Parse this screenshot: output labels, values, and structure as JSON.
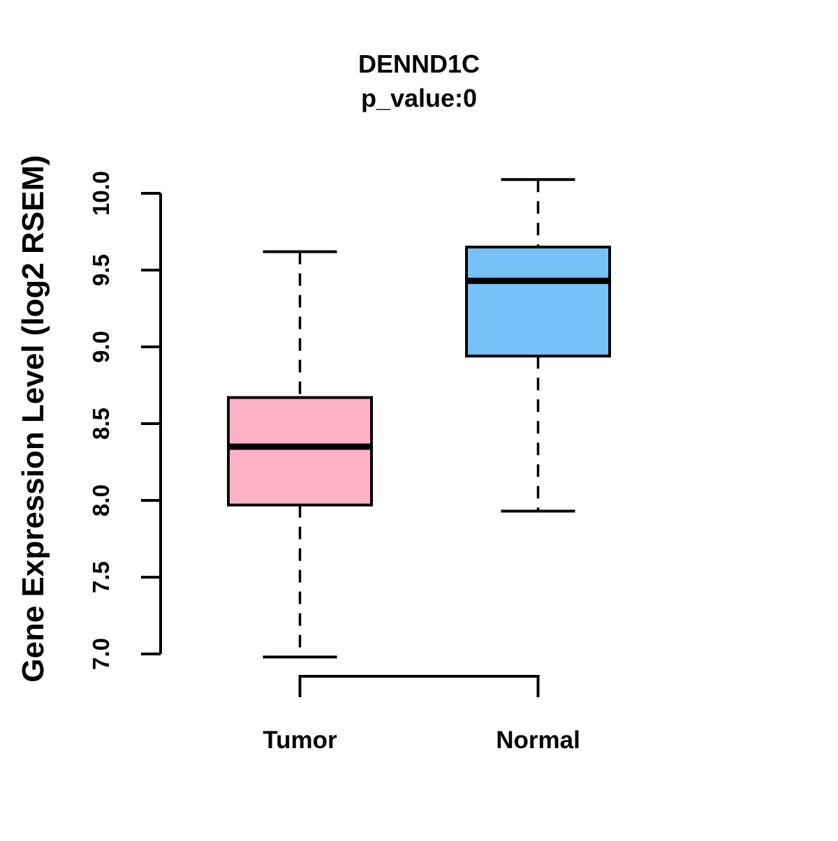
{
  "chart_data": {
    "type": "boxplot",
    "title": "DENND1C",
    "subtitle": "p_value:0",
    "ylabel": "Gene Expression Level (log2 RSEM)",
    "xlabel": "",
    "ylim": [
      7.0,
      10.0
    ],
    "yticks": [
      7.0,
      7.5,
      8.0,
      8.5,
      9.0,
      9.5,
      10.0
    ],
    "ytick_labels": [
      "7.0",
      "7.5",
      "8.0",
      "8.5",
      "9.0",
      "9.5",
      "10.0"
    ],
    "categories": [
      "Tumor",
      "Normal"
    ],
    "grid": "off",
    "legend": "none",
    "series": [
      {
        "label": "Tumor",
        "color": "#FCB1C4",
        "whisker_low": 6.98,
        "q1": 7.97,
        "median": 8.35,
        "q3": 8.67,
        "whisker_high": 9.62,
        "outliers": []
      },
      {
        "label": "Normal",
        "color": "#74C0F7",
        "whisker_low": 7.93,
        "q1": 8.94,
        "median": 9.43,
        "q3": 9.65,
        "whisker_high": 10.09,
        "outliers": []
      }
    ],
    "colors": {
      "tumor_fill": "#FCB1C4",
      "normal_fill": "#74C0F7",
      "line": "#000000",
      "background": "#ffffff"
    }
  }
}
